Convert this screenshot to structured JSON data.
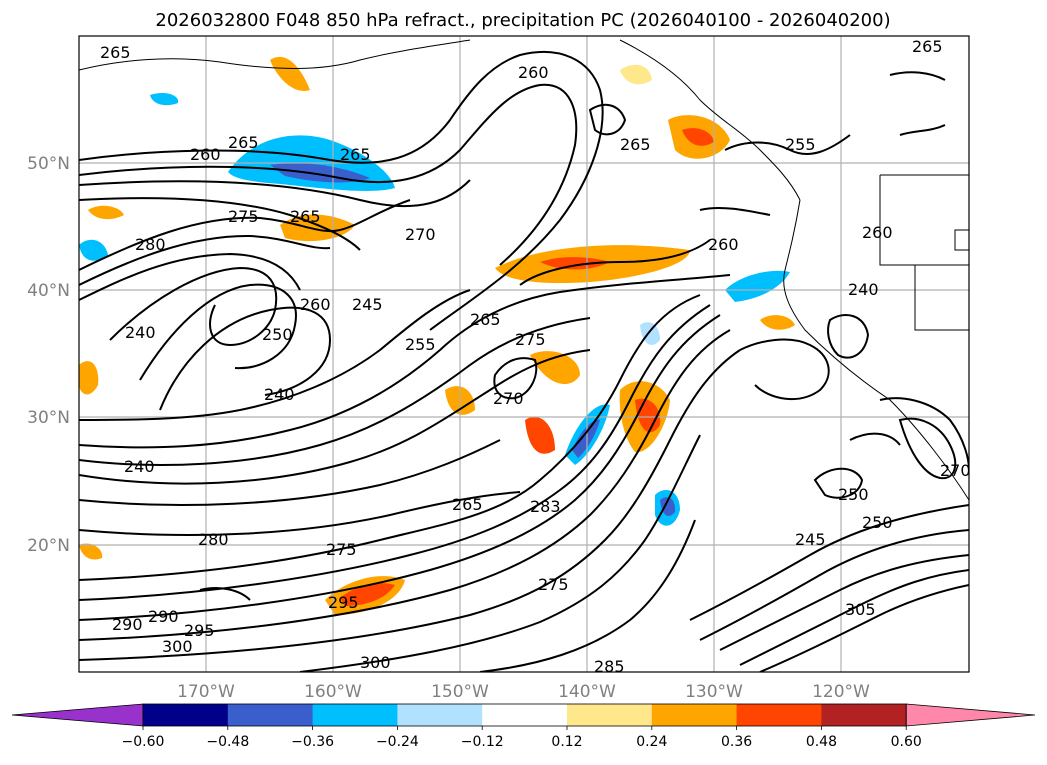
{
  "title": "2026032800 F048 850 hPa refract., precipitation PC (2026040100 - 2026040200)",
  "lat_labels": [
    "50°N",
    "40°N",
    "30°N",
    "20°N"
  ],
  "lon_labels": [
    "170°W",
    "160°W",
    "150°W",
    "140°W",
    "130°W",
    "120°W"
  ],
  "contour_labels": [
    "265",
    "260",
    "265",
    "260",
    "265",
    "265",
    "255",
    "265",
    "275",
    "265",
    "270",
    "280",
    "260",
    "245",
    "255",
    "265",
    "275",
    "260",
    "260",
    "240",
    "250",
    "240",
    "270",
    "240",
    "240",
    "265",
    "283",
    "250",
    "250",
    "280",
    "275",
    "245",
    "295",
    "275",
    "305",
    "290",
    "290",
    "295",
    "300",
    "300",
    "285",
    "270"
  ],
  "colorbar": {
    "tick_labels": [
      "−0.60",
      "−0.48",
      "−0.36",
      "−0.24",
      "−0.12",
      "0.12",
      "0.24",
      "0.36",
      "0.48",
      "0.60"
    ],
    "colors": [
      "#9932cc",
      "#00008b",
      "#3a5fcd",
      "#00bfff",
      "#b0e2ff",
      "#ffffff",
      "#ffe88c",
      "#ffa500",
      "#ff4500",
      "#b22222",
      "#ff88aa"
    ]
  },
  "colors": {
    "contour": "#000000",
    "grid": "#b0b0b0",
    "coast": "#000000"
  }
}
